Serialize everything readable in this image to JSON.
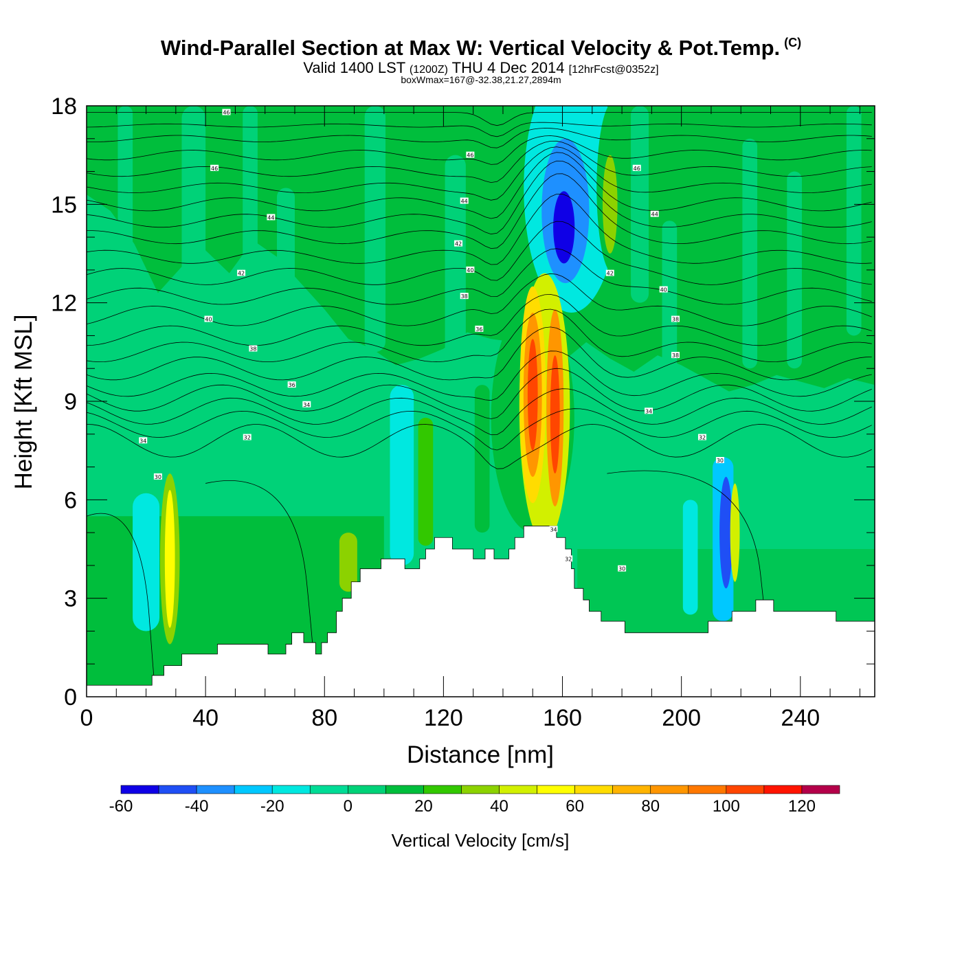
{
  "chart_data": {
    "type": "heatmap",
    "title": "Wind-Parallel Section at Max W: Vertical Velocity & Pot.Temp.",
    "copyright_mark": "(C)",
    "subtitle_valid": "Valid 1400 LST",
    "subtitle_utc": "(1200Z)",
    "subtitle_date": "THU 4 Dec 2014",
    "subtitle_fcst": "[12hrFcst@0352z]",
    "subtitle_box": "boxWmax=167@-32.38,21.27,2894m",
    "xlabel": "Distance [nm]",
    "ylabel": "Height [Kft MSL]",
    "xlim": [
      0,
      265
    ],
    "ylim": [
      0,
      18
    ],
    "x_ticks": [
      "0",
      "40",
      "80",
      "120",
      "160",
      "200",
      "240"
    ],
    "x_tick_values": [
      0,
      40,
      80,
      120,
      160,
      200,
      240
    ],
    "y_ticks": [
      "0",
      "3",
      "6",
      "9",
      "12",
      "15",
      "18"
    ],
    "y_tick_values": [
      0,
      3,
      6,
      9,
      12,
      15,
      18
    ],
    "colorbar": {
      "title": "Vertical Velocity [cm/s]",
      "levels": [
        -60,
        -50,
        -40,
        -30,
        -20,
        -10,
        0,
        10,
        20,
        30,
        40,
        50,
        60,
        70,
        80,
        90,
        100,
        110,
        120,
        130
      ],
      "colors": [
        "#0f00e6",
        "#1f4ff5",
        "#1e90ff",
        "#00c8ff",
        "#00e8e0",
        "#00dc96",
        "#00d278",
        "#00be3c",
        "#32c800",
        "#8cd200",
        "#d2f000",
        "#ffff00",
        "#ffdc00",
        "#ffb400",
        "#ff9600",
        "#ff7800",
        "#ff4600",
        "#ff1400",
        "#b4004a"
      ],
      "tick_labels": [
        "-60",
        "-40",
        "-20",
        "0",
        "20",
        "40",
        "60",
        "80",
        "100",
        "120"
      ],
      "tick_values": [
        -60,
        -40,
        -20,
        0,
        20,
        40,
        60,
        80,
        100,
        120
      ]
    },
    "terrain_kft": [
      [
        0,
        0.35
      ],
      [
        22,
        0.35
      ],
      [
        22,
        0.65
      ],
      [
        26,
        0.65
      ],
      [
        26,
        0.95
      ],
      [
        32,
        0.95
      ],
      [
        32,
        1.3
      ],
      [
        44,
        1.3
      ],
      [
        44,
        1.6
      ],
      [
        61,
        1.6
      ],
      [
        61,
        1.3
      ],
      [
        67,
        1.3
      ],
      [
        67,
        1.6
      ],
      [
        69,
        1.6
      ],
      [
        69,
        1.95
      ],
      [
        73,
        1.95
      ],
      [
        73,
        1.65
      ],
      [
        77,
        1.65
      ],
      [
        77,
        1.3
      ],
      [
        79,
        1.3
      ],
      [
        79,
        1.65
      ],
      [
        81,
        1.65
      ],
      [
        81,
        1.95
      ],
      [
        84,
        1.95
      ],
      [
        84,
        2.6
      ],
      [
        86,
        2.6
      ],
      [
        86,
        3.0
      ],
      [
        89,
        3.0
      ],
      [
        89,
        3.5
      ],
      [
        92,
        3.5
      ],
      [
        92,
        3.9
      ],
      [
        99,
        3.9
      ],
      [
        99,
        4.2
      ],
      [
        107,
        4.2
      ],
      [
        107,
        3.9
      ],
      [
        112,
        3.9
      ],
      [
        112,
        4.2
      ],
      [
        114,
        4.2
      ],
      [
        114,
        4.5
      ],
      [
        117,
        4.5
      ],
      [
        117,
        4.85
      ],
      [
        123,
        4.85
      ],
      [
        123,
        4.5
      ],
      [
        130,
        4.5
      ],
      [
        130,
        4.2
      ],
      [
        134,
        4.2
      ],
      [
        134,
        4.5
      ],
      [
        137,
        4.5
      ],
      [
        137,
        4.2
      ],
      [
        142,
        4.2
      ],
      [
        142,
        4.5
      ],
      [
        144,
        4.5
      ],
      [
        144,
        4.85
      ],
      [
        147,
        4.85
      ],
      [
        147,
        5.2
      ],
      [
        158,
        5.2
      ],
      [
        158,
        4.85
      ],
      [
        161,
        4.85
      ],
      [
        161,
        4.5
      ],
      [
        163,
        4.5
      ],
      [
        163,
        3.9
      ],
      [
        164,
        3.9
      ],
      [
        164,
        3.3
      ],
      [
        167,
        3.3
      ],
      [
        167,
        2.95
      ],
      [
        169,
        2.95
      ],
      [
        169,
        2.6
      ],
      [
        173,
        2.6
      ],
      [
        173,
        2.3
      ],
      [
        181,
        2.3
      ],
      [
        181,
        1.95
      ],
      [
        209,
        1.95
      ],
      [
        209,
        2.3
      ],
      [
        217,
        2.3
      ],
      [
        217,
        2.6
      ],
      [
        225,
        2.6
      ],
      [
        225,
        2.95
      ],
      [
        231,
        2.95
      ],
      [
        231,
        2.6
      ],
      [
        252,
        2.6
      ],
      [
        252,
        2.3
      ],
      [
        265,
        2.3
      ]
    ],
    "wtop_kft": [
      [
        0,
        15.3
      ],
      [
        8,
        14.8
      ],
      [
        16,
        13.8
      ],
      [
        24,
        12.3
      ],
      [
        32,
        13.1
      ],
      [
        40,
        13.6
      ],
      [
        48,
        12.9
      ],
      [
        56,
        13.9
      ],
      [
        64,
        13.4
      ],
      [
        72,
        12.6
      ],
      [
        80,
        11.8
      ],
      [
        88,
        10.9
      ],
      [
        96,
        10.6
      ],
      [
        104,
        10.1
      ],
      [
        112,
        10.3
      ],
      [
        120,
        10.6
      ],
      [
        128,
        11.1
      ],
      [
        136,
        10.9
      ],
      [
        144,
        10.8
      ],
      [
        152,
        10.5
      ],
      [
        160,
        10.2
      ],
      [
        168,
        10.8
      ],
      [
        176,
        10.3
      ],
      [
        184,
        9.9
      ],
      [
        192,
        10.4
      ],
      [
        200,
        10.1
      ],
      [
        208,
        9.7
      ],
      [
        216,
        9.3
      ],
      [
        224,
        9.5
      ],
      [
        232,
        9.8
      ],
      [
        240,
        9.6
      ],
      [
        248,
        9.4
      ],
      [
        256,
        9.7
      ],
      [
        265,
        9.5
      ]
    ],
    "strips": [
      {
        "x": 13,
        "w": 5,
        "y0": 9.5,
        "y1": 18,
        "w_cms": 5
      },
      {
        "x": 36,
        "w": 8,
        "y0": 10.5,
        "y1": 18,
        "w_cms": 5
      },
      {
        "x": 55,
        "w": 5,
        "y0": 11.5,
        "y1": 18,
        "w_cms": 5
      },
      {
        "x": 67,
        "w": 6,
        "y0": 8.5,
        "y1": 15.5,
        "w_cms": 5
      },
      {
        "x": 97,
        "w": 7,
        "y0": 10.5,
        "y1": 18,
        "w_cms": 5
      },
      {
        "x": 124,
        "w": 7,
        "y0": 9.5,
        "y1": 16.5,
        "w_cms": 5
      },
      {
        "x": 186,
        "w": 6,
        "y0": 12,
        "y1": 18,
        "w_cms": 5
      },
      {
        "x": 196,
        "w": 5,
        "y0": 9.5,
        "y1": 14.5,
        "w_cms": 5
      },
      {
        "x": 223,
        "w": 5,
        "y0": 10,
        "y1": 17,
        "w_cms": 5
      },
      {
        "x": 238,
        "w": 5,
        "y0": 10,
        "y1": 16,
        "w_cms": 5
      },
      {
        "x": 258,
        "w": 5,
        "y0": 11,
        "y1": 18,
        "w_cms": 5
      },
      {
        "x": 106,
        "w": 8,
        "y0": 4.0,
        "y1": 9.5,
        "w_cms": -15
      },
      {
        "x": 114,
        "w": 5,
        "y0": 4.6,
        "y1": 8.5,
        "w_cms": 25
      },
      {
        "x": 88,
        "w": 6,
        "y0": 3.2,
        "y1": 5.0,
        "w_cms": 30
      },
      {
        "x": 20,
        "w": 9,
        "y0": 2.0,
        "y1": 6.2,
        "w_cms": -15
      },
      {
        "x": 133,
        "w": 5,
        "y0": 5.0,
        "y1": 9.5,
        "w_cms": 15
      },
      {
        "x": 214,
        "w": 7,
        "y0": 2.3,
        "y1": 7.3,
        "w_cms": -25
      },
      {
        "x": 203,
        "w": 5,
        "y0": 2.5,
        "y1": 6.0,
        "w_cms": -15
      }
    ],
    "cells": [
      {
        "x": 163,
        "y": 15.5,
        "rx": 16,
        "ry": 3.8,
        "w_cms": -15
      },
      {
        "x": 161,
        "y": 14.8,
        "rx": 8,
        "ry": 2.2,
        "w_cms": -35
      },
      {
        "x": 160.5,
        "y": 14.3,
        "rx": 3.6,
        "ry": 1.1,
        "w_cms": -55
      },
      {
        "x": 177,
        "y": 15.5,
        "rx": 5.5,
        "ry": 2.6,
        "w_cms": 15
      },
      {
        "x": 176,
        "y": 15.0,
        "rx": 2.5,
        "ry": 1.5,
        "w_cms": 35
      },
      {
        "x": 150,
        "y": 8.5,
        "rx": 14,
        "ry": 3.5,
        "w_cms": 15
      },
      {
        "x": 154,
        "y": 8.8,
        "rx": 8.5,
        "ry": 4.1,
        "w_cms": 45
      },
      {
        "x": 150,
        "y": 9.2,
        "rx": 4.4,
        "ry": 3.3,
        "w_cms": 65
      },
      {
        "x": 150,
        "y": 9.2,
        "rx": 3.1,
        "ry": 2.5,
        "w_cms": 85
      },
      {
        "x": 150,
        "y": 9.2,
        "rx": 1.7,
        "ry": 1.7,
        "w_cms": 105
      },
      {
        "x": 157.5,
        "y": 8.8,
        "rx": 2.9,
        "ry": 3.0,
        "w_cms": 85
      },
      {
        "x": 157.5,
        "y": 8.6,
        "rx": 1.6,
        "ry": 1.8,
        "w_cms": 105
      },
      {
        "x": 28,
        "y": 4.2,
        "rx": 3.3,
        "ry": 2.6,
        "w_cms": 35
      },
      {
        "x": 28,
        "y": 4.2,
        "rx": 1.7,
        "ry": 2.1,
        "w_cms": 55
      },
      {
        "x": 215,
        "y": 5.0,
        "rx": 2.2,
        "ry": 1.7,
        "w_cms": -45
      },
      {
        "x": 218,
        "y": 5.0,
        "rx": 1.6,
        "ry": 1.5,
        "w_cms": 40
      }
    ],
    "theta_levels": [
      {
        "y0": 17.8,
        "amp": 0.0,
        "bump": 0.0
      },
      {
        "y0": 17.4,
        "amp": 0.05,
        "bump": 0.1
      },
      {
        "y0": 17.0,
        "amp": 0.1,
        "bump": 0.3
      },
      {
        "y0": 16.5,
        "amp": 0.15,
        "bump": 0.5
      },
      {
        "y0": 16.0,
        "amp": 0.15,
        "bump": 0.8
      },
      {
        "y0": 15.5,
        "amp": 0.15,
        "bump": 1.1
      },
      {
        "y0": 15.0,
        "amp": 0.2,
        "bump": 1.4
      },
      {
        "y0": 14.5,
        "amp": 0.2,
        "bump": 1.7
      },
      {
        "y0": 14.0,
        "amp": 0.2,
        "bump": 1.9
      },
      {
        "y0": 13.4,
        "amp": 0.2,
        "bump": 2.0
      },
      {
        "y0": 12.8,
        "amp": 0.25,
        "bump": 1.9
      },
      {
        "y0": 12.2,
        "amp": 0.25,
        "bump": 1.7
      },
      {
        "y0": 11.6,
        "amp": 0.3,
        "bump": 1.5
      },
      {
        "y0": 11.0,
        "amp": 0.3,
        "bump": 1.3
      },
      {
        "y0": 10.5,
        "amp": 0.3,
        "bump": 1.2
      },
      {
        "y0": 10.0,
        "amp": 0.35,
        "bump": 1.0
      },
      {
        "y0": 9.5,
        "amp": 0.35,
        "bump": 0.7
      },
      {
        "y0": 9.1,
        "amp": 0.4,
        "bump": 0.5
      },
      {
        "y0": 8.7,
        "amp": 0.4,
        "bump": 0.3
      },
      {
        "y0": 8.3,
        "amp": 0.4,
        "bump": 0.1
      },
      {
        "y0": 7.8,
        "amp": 0.5,
        "bump": 0.0
      }
    ],
    "contour_labels": [
      {
        "text": "46",
        "x": 47,
        "y": 17.8
      },
      {
        "text": "46",
        "x": 43,
        "y": 16.1
      },
      {
        "text": "46",
        "x": 129,
        "y": 16.5
      },
      {
        "text": "46",
        "x": 185,
        "y": 16.1
      },
      {
        "text": "44",
        "x": 62,
        "y": 14.6
      },
      {
        "text": "44",
        "x": 127,
        "y": 15.1
      },
      {
        "text": "44",
        "x": 191,
        "y": 14.7
      },
      {
        "text": "42",
        "x": 52,
        "y": 12.9
      },
      {
        "text": "42",
        "x": 125,
        "y": 13.8
      },
      {
        "text": "42",
        "x": 176,
        "y": 12.9
      },
      {
        "text": "40",
        "x": 41,
        "y": 11.5
      },
      {
        "text": "40",
        "x": 129,
        "y": 13.0
      },
      {
        "text": "40",
        "x": 194,
        "y": 12.4
      },
      {
        "text": "38",
        "x": 127,
        "y": 12.2
      },
      {
        "text": "38",
        "x": 56,
        "y": 10.6
      },
      {
        "text": "38",
        "x": 198,
        "y": 11.5
      },
      {
        "text": "38",
        "x": 198,
        "y": 10.4
      },
      {
        "text": "36",
        "x": 132,
        "y": 11.2
      },
      {
        "text": "36",
        "x": 69,
        "y": 9.5
      },
      {
        "text": "34",
        "x": 74,
        "y": 8.9
      },
      {
        "text": "34",
        "x": 19,
        "y": 7.8
      },
      {
        "text": "34",
        "x": 189,
        "y": 8.7
      },
      {
        "text": "34",
        "x": 157,
        "y": 5.1
      },
      {
        "text": "32",
        "x": 54,
        "y": 7.9
      },
      {
        "text": "32",
        "x": 207,
        "y": 7.9
      },
      {
        "text": "32",
        "x": 162,
        "y": 4.2
      },
      {
        "text": "30",
        "x": 24,
        "y": 6.7
      },
      {
        "text": "30",
        "x": 213,
        "y": 7.2
      },
      {
        "text": "30",
        "x": 180,
        "y": 3.9
      }
    ]
  }
}
